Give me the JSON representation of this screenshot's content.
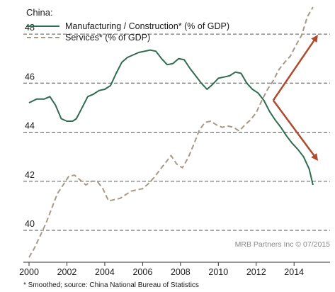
{
  "chart_data": {
    "type": "line",
    "legend_title": "China:",
    "legend_placement": "top-left",
    "series": [
      {
        "name": "Manufacturing / Construction* (% of GDP)",
        "style": "solid",
        "color": "#2e6b4f",
        "points": [
          [
            2000.0,
            45.2
          ],
          [
            2000.4,
            45.35
          ],
          [
            2000.8,
            45.35
          ],
          [
            2001.1,
            45.45
          ],
          [
            2001.4,
            45.1
          ],
          [
            2001.7,
            44.55
          ],
          [
            2002.0,
            44.45
          ],
          [
            2002.3,
            44.45
          ],
          [
            2002.5,
            44.55
          ],
          [
            2002.8,
            45.0
          ],
          [
            2003.1,
            45.45
          ],
          [
            2003.4,
            45.55
          ],
          [
            2003.7,
            45.7
          ],
          [
            2004.0,
            45.75
          ],
          [
            2004.3,
            45.9
          ],
          [
            2004.6,
            46.4
          ],
          [
            2004.9,
            46.85
          ],
          [
            2005.2,
            47.05
          ],
          [
            2005.5,
            47.15
          ],
          [
            2005.8,
            47.25
          ],
          [
            2006.1,
            47.3
          ],
          [
            2006.4,
            47.35
          ],
          [
            2006.7,
            47.3
          ],
          [
            2007.0,
            47.0
          ],
          [
            2007.3,
            46.75
          ],
          [
            2007.6,
            46.8
          ],
          [
            2007.9,
            47.0
          ],
          [
            2008.2,
            46.95
          ],
          [
            2008.5,
            46.6
          ],
          [
            2008.8,
            46.3
          ],
          [
            2009.1,
            46.0
          ],
          [
            2009.4,
            45.75
          ],
          [
            2009.7,
            45.95
          ],
          [
            2010.0,
            46.2
          ],
          [
            2010.3,
            46.25
          ],
          [
            2010.6,
            46.3
          ],
          [
            2010.9,
            46.45
          ],
          [
            2011.2,
            46.4
          ],
          [
            2011.5,
            46.0
          ],
          [
            2011.8,
            45.75
          ],
          [
            2012.1,
            45.6
          ],
          [
            2012.4,
            45.3
          ],
          [
            2012.7,
            44.85
          ],
          [
            2013.0,
            44.5
          ],
          [
            2013.3,
            44.2
          ],
          [
            2013.6,
            43.85
          ],
          [
            2013.9,
            43.55
          ],
          [
            2014.2,
            43.3
          ],
          [
            2014.5,
            43.0
          ],
          [
            2014.8,
            42.5
          ],
          [
            2015.0,
            41.85
          ]
        ]
      },
      {
        "name": "Services* (% of GDP)",
        "style": "dashed",
        "color": "#a69a86",
        "points": [
          [
            2000.0,
            38.9
          ],
          [
            2000.3,
            39.3
          ],
          [
            2000.6,
            39.8
          ],
          [
            2000.9,
            40.3
          ],
          [
            2001.2,
            40.9
          ],
          [
            2001.5,
            41.5
          ],
          [
            2001.8,
            41.85
          ],
          [
            2002.1,
            42.2
          ],
          [
            2002.4,
            42.25
          ],
          [
            2002.7,
            42.05
          ],
          [
            2003.0,
            41.85
          ],
          [
            2003.3,
            42.0
          ],
          [
            2003.6,
            42.0
          ],
          [
            2003.9,
            41.7
          ],
          [
            2004.2,
            41.2
          ],
          [
            2004.5,
            41.25
          ],
          [
            2004.8,
            41.3
          ],
          [
            2005.1,
            41.45
          ],
          [
            2005.4,
            41.6
          ],
          [
            2005.7,
            41.65
          ],
          [
            2006.0,
            41.7
          ],
          [
            2006.3,
            41.9
          ],
          [
            2006.6,
            42.15
          ],
          [
            2006.9,
            42.45
          ],
          [
            2007.2,
            42.75
          ],
          [
            2007.5,
            43.05
          ],
          [
            2007.8,
            42.7
          ],
          [
            2008.1,
            42.55
          ],
          [
            2008.4,
            42.95
          ],
          [
            2008.7,
            43.5
          ],
          [
            2009.0,
            44.1
          ],
          [
            2009.3,
            44.4
          ],
          [
            2009.6,
            44.45
          ],
          [
            2009.9,
            44.3
          ],
          [
            2010.2,
            44.2
          ],
          [
            2010.5,
            44.25
          ],
          [
            2010.8,
            44.2
          ],
          [
            2011.1,
            44.05
          ],
          [
            2011.4,
            44.3
          ],
          [
            2011.7,
            44.5
          ],
          [
            2012.0,
            44.8
          ],
          [
            2012.3,
            45.3
          ],
          [
            2012.6,
            45.75
          ],
          [
            2012.9,
            46.1
          ],
          [
            2013.2,
            46.55
          ],
          [
            2013.5,
            46.85
          ],
          [
            2013.8,
            47.1
          ],
          [
            2014.1,
            47.55
          ],
          [
            2014.4,
            47.95
          ],
          [
            2014.7,
            48.7
          ],
          [
            2015.0,
            49.1
          ]
        ]
      }
    ],
    "arrows": [
      {
        "from": [
          2012.9,
          45.3
        ],
        "to": [
          2015.2,
          47.9
        ],
        "color": "#b04a2e"
      },
      {
        "from": [
          2012.9,
          45.3
        ],
        "to": [
          2015.2,
          42.9
        ],
        "color": "#b04a2e"
      }
    ],
    "x_ticks": [
      2000,
      2002,
      2004,
      2006,
      2008,
      2010,
      2012,
      2014
    ],
    "y_ticks": [
      40,
      42,
      44,
      46,
      48
    ],
    "xlim": [
      1999.7,
      2015.9
    ],
    "ylim": [
      38.7,
      49.1
    ],
    "grid": "horizontal dashed",
    "credit": "MRB Partners Inc © 07/2015",
    "footnote": "* Smoothed; source: China National Bureau of Statistics"
  }
}
